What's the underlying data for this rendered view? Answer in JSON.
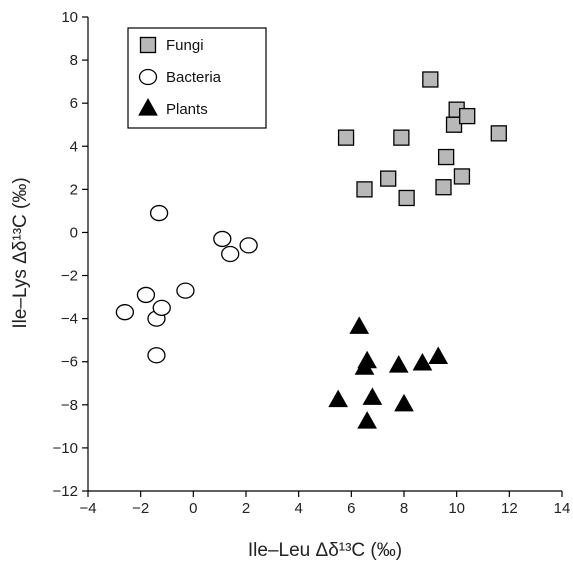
{
  "chart_data": {
    "type": "scatter",
    "xlabel": "Ile–Leu Δδ¹³C (‰)",
    "ylabel": "Ile–Lys Δδ¹³C (‰)",
    "xlim": [
      -4,
      14
    ],
    "ylim": [
      -12,
      10
    ],
    "xticks": [
      -4,
      -2,
      0,
      2,
      4,
      6,
      8,
      10,
      12,
      14
    ],
    "yticks": [
      -12,
      -10,
      -8,
      -6,
      -4,
      -2,
      0,
      2,
      4,
      6,
      8,
      10
    ],
    "grid": false,
    "legend_position": "top-left",
    "series": [
      {
        "name": "Fungi",
        "marker": "square",
        "fill": "#b8b8b8",
        "x": [
          5.8,
          6.5,
          7.4,
          7.9,
          8.1,
          9.0,
          9.5,
          9.6,
          9.9,
          10.0,
          10.2,
          10.4,
          11.6
        ],
        "y": [
          4.4,
          2.0,
          2.5,
          4.4,
          1.6,
          7.1,
          2.1,
          3.5,
          5.0,
          5.7,
          2.6,
          5.4,
          4.6
        ]
      },
      {
        "name": "Bacteria",
        "marker": "circle",
        "fill": "#ffffff",
        "x": [
          -2.6,
          -1.8,
          -1.4,
          -1.4,
          -1.3,
          -1.2,
          -0.3,
          1.1,
          1.4,
          2.1
        ],
        "y": [
          -3.7,
          -2.9,
          -5.7,
          -4.0,
          0.9,
          -3.5,
          -2.7,
          -0.3,
          -1.0,
          -0.6
        ]
      },
      {
        "name": "Plants",
        "marker": "triangle",
        "fill": "#000000",
        "x": [
          5.5,
          6.3,
          6.5,
          6.6,
          6.6,
          6.8,
          7.8,
          8.0,
          8.7,
          9.3
        ],
        "y": [
          -7.8,
          -4.4,
          -6.3,
          -6.0,
          -8.8,
          -7.7,
          -6.2,
          -8.0,
          -6.1,
          -5.8
        ]
      }
    ]
  }
}
